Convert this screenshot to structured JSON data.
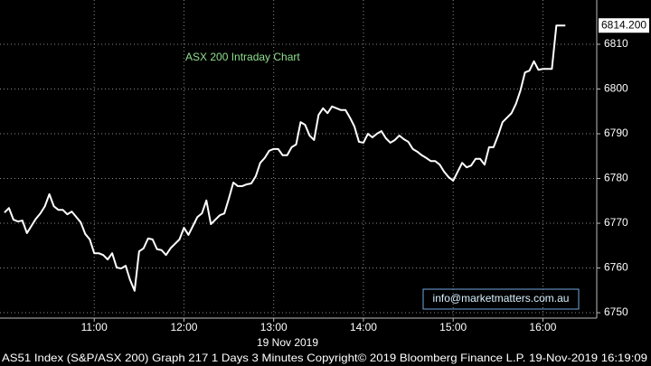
{
  "chart_data": {
    "type": "line",
    "title": "ASX 200 Intraday Chart",
    "xlabel": "19 Nov 2019",
    "footer": "AS51 Index (S&P/ASX 200) Graph 217 1 Days 3 Minutes Copyright© 2019 Bloomberg Finance L.P. 19-Nov-2019 16:19:09",
    "annotation": "info@marketmatters.com.au",
    "last_value": {
      "value": 6814.2,
      "label": "6814.200"
    },
    "x": [
      600,
      603,
      606,
      609,
      612,
      615,
      618,
      621,
      624,
      627,
      630,
      633,
      636,
      639,
      642,
      645,
      648,
      651,
      654,
      657,
      660,
      663,
      666,
      669,
      672,
      675,
      678,
      681,
      684,
      687,
      690,
      693,
      696,
      699,
      702,
      705,
      708,
      711,
      714,
      717,
      720,
      723,
      726,
      729,
      732,
      735,
      738,
      741,
      744,
      747,
      750,
      753,
      756,
      759,
      762,
      765,
      768,
      771,
      774,
      777,
      780,
      783,
      786,
      789,
      792,
      795,
      798,
      801,
      804,
      807,
      810,
      813,
      816,
      819,
      822,
      825,
      828,
      831,
      834,
      837,
      840,
      843,
      846,
      849,
      852,
      855,
      858,
      861,
      864,
      867,
      870,
      873,
      876,
      879,
      882,
      885,
      888,
      891,
      894,
      897,
      900,
      903,
      906,
      909,
      912,
      915,
      918,
      921,
      924,
      927,
      930,
      933,
      936,
      939,
      942,
      945,
      948,
      951,
      954,
      957,
      960,
      963,
      966,
      969,
      972,
      975
    ],
    "series": [
      {
        "color": "#ffffff",
        "values": [
          6772.4,
          6773.4,
          6770.8,
          6770.4,
          6770.6,
          6767.8,
          6769.4,
          6771.0,
          6772.2,
          6773.8,
          6776.5,
          6773.8,
          6773.0,
          6773.0,
          6772.0,
          6772.6,
          6771.4,
          6770.2,
          6767.6,
          6766.4,
          6763.3,
          6763.3,
          6762.9,
          6761.9,
          6763.3,
          6760.1,
          6759.9,
          6760.5,
          6757.3,
          6754.9,
          6763.7,
          6764.4,
          6766.6,
          6766.4,
          6764.2,
          6764.0,
          6762.9,
          6764.4,
          6765.4,
          6766.4,
          6769.0,
          6767.4,
          6769.4,
          6771.4,
          6772.2,
          6775.1,
          6769.8,
          6770.8,
          6771.8,
          6772.2,
          6775.5,
          6779.1,
          6778.3,
          6778.3,
          6778.7,
          6778.9,
          6780.5,
          6783.5,
          6784.6,
          6786.2,
          6786.6,
          6786.6,
          6785.2,
          6785.2,
          6787.0,
          6787.6,
          6792.6,
          6792.0,
          6789.6,
          6788.6,
          6794.2,
          6795.7,
          6794.6,
          6796.1,
          6795.7,
          6795.3,
          6795.3,
          6793.6,
          6791.6,
          6788.2,
          6788.0,
          6790.0,
          6789.2,
          6790.0,
          6790.6,
          6789.0,
          6788.0,
          6788.6,
          6789.6,
          6788.8,
          6788.2,
          6786.6,
          6786.0,
          6785.2,
          6784.6,
          6783.9,
          6783.9,
          6783.1,
          6781.5,
          6780.3,
          6779.5,
          6781.5,
          6783.5,
          6782.5,
          6782.9,
          6784.4,
          6784.4,
          6783.1,
          6787.0,
          6787.0,
          6789.6,
          6792.6,
          6793.6,
          6794.6,
          6796.7,
          6799.7,
          6803.7,
          6804.1,
          6806.2,
          6804.3,
          6804.5,
          6804.5,
          6804.5,
          6814.2,
          6814.2,
          6814.2
        ]
      }
    ],
    "xlim": [
      597,
      996
    ],
    "ylim": [
      6748.8,
      6819.9
    ],
    "xticks": [
      {
        "value": 660,
        "label": "11:00"
      },
      {
        "value": 720,
        "label": "12:00"
      },
      {
        "value": 780,
        "label": "13:00"
      },
      {
        "value": 840,
        "label": "14:00"
      },
      {
        "value": 900,
        "label": "15:00"
      },
      {
        "value": 960,
        "label": "16:00"
      }
    ],
    "yticks": [
      6750,
      6760,
      6770,
      6780,
      6790,
      6800,
      6810
    ],
    "grid": true
  }
}
